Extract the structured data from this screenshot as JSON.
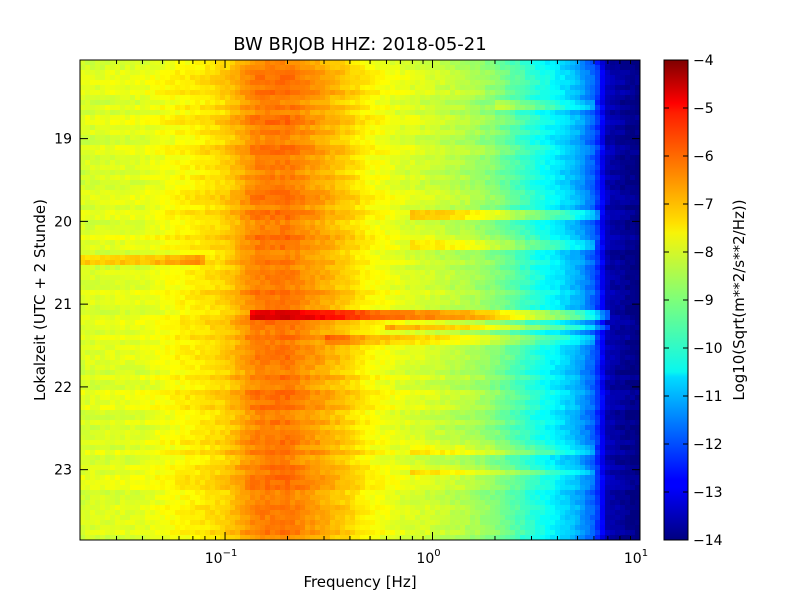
{
  "chart_data": {
    "type": "heatmap",
    "title": "BW BRJOB HHZ: 2018-05-21",
    "xlabel": "Frequency [Hz]",
    "ylabel": "Lokalzeit (UTC + 2 Stunde)",
    "x_scale": "log",
    "xlim": [
      0.02,
      10
    ],
    "x_ticks": [
      {
        "base": "10",
        "exp": "-1"
      },
      {
        "base": "10",
        "exp": "0"
      },
      {
        "base": "10",
        "exp": "1"
      }
    ],
    "ylim": [
      18.05,
      23.85
    ],
    "y_ticks": [
      "19",
      "20",
      "21",
      "22",
      "23"
    ],
    "y_inverted": true,
    "colormap": "jet",
    "colorbar": {
      "label": "Log10(Sqrt(m**2/s**2/Hz))",
      "min": -14,
      "max": -4,
      "ticks": [
        "−4",
        "−5",
        "−6",
        "−7",
        "−8",
        "−9",
        "−10",
        "−11",
        "−12",
        "−13",
        "−14"
      ]
    },
    "frequencies": [
      0.02,
      0.04,
      0.06,
      0.08,
      0.1,
      0.14,
      0.2,
      0.3,
      0.4,
      0.5,
      0.7,
      1,
      1.5,
      2,
      3,
      4,
      5,
      6,
      7,
      10
    ],
    "mean_spectrum": [
      -8.1,
      -8.0,
      -7.7,
      -7.5,
      -7.3,
      -6.5,
      -6.4,
      -6.9,
      -7.3,
      -7.7,
      -8.0,
      -8.2,
      -8.5,
      -8.9,
      -9.8,
      -10.4,
      -11.0,
      -11.8,
      -13.5,
      -14.0
    ],
    "band_events": [
      {
        "time": 21.14,
        "level_offset": 1.6,
        "fmin": 0.13,
        "fmax": 7
      },
      {
        "time": 21.28,
        "level_offset": 1.0,
        "fmin": 0.6,
        "fmax": 7
      },
      {
        "time": 21.43,
        "level_offset": 0.6,
        "fmin": 0.3,
        "fmax": 6
      },
      {
        "time": 19.93,
        "level_offset": 0.8,
        "fmin": 0.8,
        "fmax": 6.5
      },
      {
        "time": 20.28,
        "level_offset": 0.6,
        "fmin": 0.8,
        "fmax": 6
      },
      {
        "time": 23.02,
        "level_offset": 0.7,
        "fmin": 0.8,
        "fmax": 6
      },
      {
        "time": 22.77,
        "level_offset": 0.5,
        "fmin": 0.8,
        "fmax": 6
      },
      {
        "time": 18.58,
        "level_offset": 0.6,
        "fmin": 2,
        "fmax": 6
      },
      {
        "time": 20.48,
        "level_offset": 0.8,
        "fmin": 0.02,
        "fmax": 0.08
      }
    ]
  }
}
